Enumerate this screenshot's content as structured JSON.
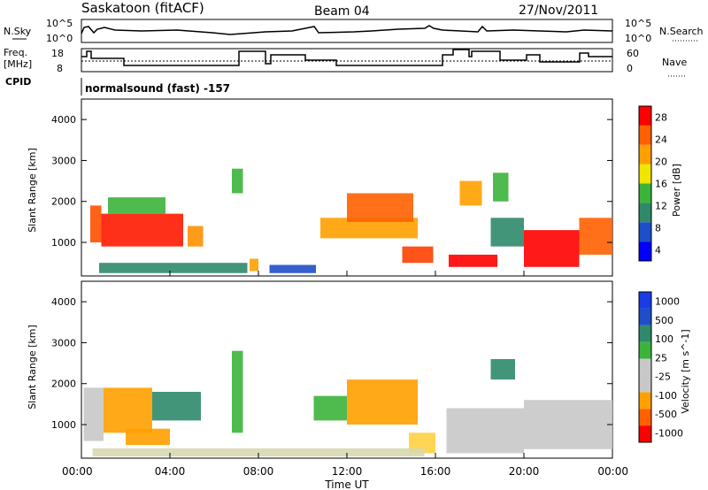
{
  "header": {
    "site": "Saskatoon (fitACF)",
    "beam": "Beam 04",
    "date": "27/Nov/2011"
  },
  "noise_panel": {
    "left_label": "N.Sky",
    "right_label": "N.Search",
    "left_ticks": [
      "10^5",
      "10^0"
    ],
    "right_ticks": [
      "10^5",
      "10^0"
    ]
  },
  "freq_panel": {
    "left_label_1": "Freq.",
    "left_label_2": "[MHz]",
    "right_label": "Nave",
    "left_ticks": [
      "18",
      "8"
    ],
    "right_ticks": [
      "60",
      "0"
    ]
  },
  "cpid": {
    "label": "CPID",
    "program": "normalsound (fast) -157"
  },
  "x_axis": {
    "label": "Time UT",
    "ticks": [
      "00:00",
      "04:00",
      "08:00",
      "12:00",
      "16:00",
      "20:00",
      "00:00"
    ]
  },
  "colors": {
    "white": "#ffffff",
    "black": "#000000",
    "grey": "#c8c8c8"
  },
  "chart_data": [
    {
      "type": "heatmap",
      "name": "power",
      "xlabel": "Time UT",
      "ylabel": "Slant Range [km]",
      "xlim": [
        0,
        24
      ],
      "ylim": [
        180,
        4500
      ],
      "yticks": [
        "4000",
        "3000",
        "2000",
        "1000"
      ],
      "colorbar": {
        "label": "Power [dB]",
        "ticks": [
          "28",
          "24",
          "20",
          "16",
          "12",
          "8",
          "4"
        ],
        "colors": [
          "#0000ff",
          "#1e4ec8",
          "#2f8a6a",
          "#3cb43c",
          "#f0e600",
          "#ffa000",
          "#ff6000",
          "#ff0000"
        ]
      },
      "cells": [
        {
          "t0": 0.4,
          "t1": 0.9,
          "r0": 1000,
          "r1": 1900,
          "c": "#ff5000"
        },
        {
          "t0": 0.9,
          "t1": 4.6,
          "r0": 900,
          "r1": 1700,
          "c": "#ff1a00"
        },
        {
          "t0": 1.2,
          "t1": 3.8,
          "r0": 1700,
          "r1": 2100,
          "c": "#3cb43c"
        },
        {
          "t0": 4.8,
          "t1": 5.5,
          "r0": 900,
          "r1": 1400,
          "c": "#ff9000"
        },
        {
          "t0": 0.8,
          "t1": 7.5,
          "r0": 250,
          "r1": 500,
          "c": "#2f8a6a"
        },
        {
          "t0": 6.8,
          "t1": 7.3,
          "r0": 2200,
          "r1": 2800,
          "c": "#3cb43c"
        },
        {
          "t0": 7.6,
          "t1": 8.0,
          "r0": 300,
          "r1": 600,
          "c": "#ffa000"
        },
        {
          "t0": 8.5,
          "t1": 10.6,
          "r0": 250,
          "r1": 450,
          "c": "#1e4ec8"
        },
        {
          "t0": 10.8,
          "t1": 15.2,
          "r0": 1100,
          "r1": 1600,
          "c": "#ffa000"
        },
        {
          "t0": 12.0,
          "t1": 15.0,
          "r0": 1500,
          "r1": 2200,
          "c": "#ff6000"
        },
        {
          "t0": 14.5,
          "t1": 15.9,
          "r0": 500,
          "r1": 900,
          "c": "#ff4000"
        },
        {
          "t0": 16.6,
          "t1": 18.8,
          "r0": 400,
          "r1": 700,
          "c": "#ff0000"
        },
        {
          "t0": 17.1,
          "t1": 18.1,
          "r0": 1900,
          "r1": 2500,
          "c": "#ffa000"
        },
        {
          "t0": 18.6,
          "t1": 19.3,
          "r0": 2000,
          "r1": 2700,
          "c": "#3cb43c"
        },
        {
          "t0": 18.5,
          "t1": 20.0,
          "r0": 900,
          "r1": 1600,
          "c": "#2f8a6a"
        },
        {
          "t0": 20.0,
          "t1": 22.5,
          "r0": 400,
          "r1": 1300,
          "c": "#ff0000"
        },
        {
          "t0": 22.5,
          "t1": 24.0,
          "r0": 700,
          "r1": 1600,
          "c": "#ff6000"
        }
      ]
    },
    {
      "type": "heatmap",
      "name": "velocity",
      "xlabel": "Time UT",
      "ylabel": "Slant Range [km]",
      "xlim": [
        0,
        24
      ],
      "ylim": [
        180,
        4500
      ],
      "yticks": [
        "4000",
        "3000",
        "2000",
        "1000"
      ],
      "colorbar": {
        "label": "Velocity [m s^-1]",
        "ticks": [
          "1000",
          "500",
          "100",
          "25",
          "-25",
          "-100",
          "-500",
          "-1000"
        ],
        "colors": [
          "#ff0000",
          "#ff6000",
          "#ffa000",
          "#c8c8c8",
          "#c8c8c8",
          "#3cb43c",
          "#2f8a6a",
          "#1e4ec8",
          "#1a3ce6"
        ]
      },
      "cells": [
        {
          "t0": 0.1,
          "t1": 1.0,
          "r0": 600,
          "r1": 1900,
          "c": "#c8c8c8"
        },
        {
          "t0": 1.0,
          "t1": 3.2,
          "r0": 800,
          "r1": 1900,
          "c": "#ffa000"
        },
        {
          "t0": 3.2,
          "t1": 5.4,
          "r0": 1100,
          "r1": 1800,
          "c": "#2f8a6a"
        },
        {
          "t0": 2.0,
          "t1": 4.0,
          "r0": 500,
          "r1": 900,
          "c": "#ffa000"
        },
        {
          "t0": 6.8,
          "t1": 7.3,
          "r0": 800,
          "r1": 2800,
          "c": "#3cb43c"
        },
        {
          "t0": 10.5,
          "t1": 12.0,
          "r0": 1100,
          "r1": 1700,
          "c": "#3cb43c"
        },
        {
          "t0": 12.0,
          "t1": 15.2,
          "r0": 1000,
          "r1": 2100,
          "c": "#ffa000"
        },
        {
          "t0": 14.8,
          "t1": 16.0,
          "r0": 300,
          "r1": 800,
          "c": "#ffd040"
        },
        {
          "t0": 16.5,
          "t1": 20.0,
          "r0": 300,
          "r1": 1400,
          "c": "#c8c8c8"
        },
        {
          "t0": 18.5,
          "t1": 19.6,
          "r0": 2100,
          "r1": 2600,
          "c": "#2f8a6a"
        },
        {
          "t0": 20.0,
          "t1": 24.0,
          "r0": 400,
          "r1": 1600,
          "c": "#c8c8c8"
        },
        {
          "t0": 0.5,
          "t1": 15.5,
          "r0": 220,
          "r1": 420,
          "c": "#d8d8b0"
        }
      ]
    }
  ]
}
